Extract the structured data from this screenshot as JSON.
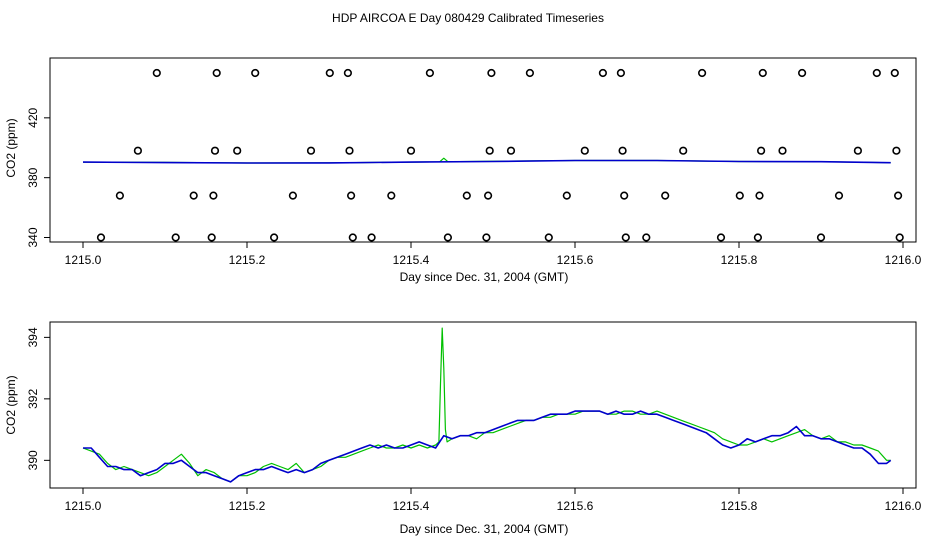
{
  "title": "HDP AIRCOA E  Day 080429  Calibrated Timeseries",
  "colors": {
    "green": "#00c000",
    "blue": "#0000cc",
    "marker": "#000000"
  },
  "chart_data": [
    {
      "type": "scatter",
      "xlabel": "Day since Dec. 31, 2004 (GMT)",
      "ylabel": "CO2 (ppm)",
      "xlim": [
        1215.0,
        1216.0
      ],
      "ylim": [
        337,
        460
      ],
      "x_ticks": [
        "1215.0",
        "1215.2",
        "1215.4",
        "1215.6",
        "1215.8",
        "1216.0"
      ],
      "y_ticks": [
        "340",
        "380",
        "420"
      ],
      "grid": false,
      "markers": [
        {
          "x": 1215.022,
          "y": 340
        },
        {
          "x": 1215.045,
          "y": 368
        },
        {
          "x": 1215.067,
          "y": 398
        },
        {
          "x": 1215.09,
          "y": 450
        },
        {
          "x": 1215.113,
          "y": 340
        },
        {
          "x": 1215.135,
          "y": 368
        },
        {
          "x": 1215.157,
          "y": 340
        },
        {
          "x": 1215.159,
          "y": 368
        },
        {
          "x": 1215.161,
          "y": 398
        },
        {
          "x": 1215.163,
          "y": 450
        },
        {
          "x": 1215.188,
          "y": 398
        },
        {
          "x": 1215.21,
          "y": 450
        },
        {
          "x": 1215.233,
          "y": 340
        },
        {
          "x": 1215.256,
          "y": 368
        },
        {
          "x": 1215.278,
          "y": 398
        },
        {
          "x": 1215.301,
          "y": 450
        },
        {
          "x": 1215.323,
          "y": 450
        },
        {
          "x": 1215.325,
          "y": 398
        },
        {
          "x": 1215.327,
          "y": 368
        },
        {
          "x": 1215.329,
          "y": 340
        },
        {
          "x": 1215.352,
          "y": 340
        },
        {
          "x": 1215.376,
          "y": 368
        },
        {
          "x": 1215.4,
          "y": 398
        },
        {
          "x": 1215.423,
          "y": 450
        },
        {
          "x": 1215.445,
          "y": 340
        },
        {
          "x": 1215.468,
          "y": 368
        },
        {
          "x": 1215.492,
          "y": 340
        },
        {
          "x": 1215.494,
          "y": 368
        },
        {
          "x": 1215.496,
          "y": 398
        },
        {
          "x": 1215.498,
          "y": 450
        },
        {
          "x": 1215.522,
          "y": 398
        },
        {
          "x": 1215.545,
          "y": 450
        },
        {
          "x": 1215.568,
          "y": 340
        },
        {
          "x": 1215.59,
          "y": 368
        },
        {
          "x": 1215.612,
          "y": 398
        },
        {
          "x": 1215.634,
          "y": 450
        },
        {
          "x": 1215.656,
          "y": 450
        },
        {
          "x": 1215.658,
          "y": 398
        },
        {
          "x": 1215.66,
          "y": 368
        },
        {
          "x": 1215.662,
          "y": 340
        },
        {
          "x": 1215.687,
          "y": 340
        },
        {
          "x": 1215.71,
          "y": 368
        },
        {
          "x": 1215.732,
          "y": 398
        },
        {
          "x": 1215.755,
          "y": 450
        },
        {
          "x": 1215.778,
          "y": 340
        },
        {
          "x": 1215.801,
          "y": 368
        },
        {
          "x": 1215.823,
          "y": 340
        },
        {
          "x": 1215.825,
          "y": 368
        },
        {
          "x": 1215.827,
          "y": 398
        },
        {
          "x": 1215.829,
          "y": 450
        },
        {
          "x": 1215.853,
          "y": 398
        },
        {
          "x": 1215.877,
          "y": 450
        },
        {
          "x": 1215.9,
          "y": 340
        },
        {
          "x": 1215.922,
          "y": 368
        },
        {
          "x": 1215.945,
          "y": 398
        },
        {
          "x": 1215.968,
          "y": 450
        },
        {
          "x": 1215.99,
          "y": 450
        },
        {
          "x": 1215.992,
          "y": 398
        },
        {
          "x": 1215.994,
          "y": 368
        },
        {
          "x": 1215.996,
          "y": 340
        }
      ],
      "series": [
        {
          "color_key": "green",
          "x": [
            1215.0,
            1215.1,
            1215.2,
            1215.3,
            1215.4,
            1215.435,
            1215.44,
            1215.445,
            1215.5,
            1215.6,
            1215.7,
            1215.8,
            1215.9,
            1215.985
          ],
          "y": [
            390.4,
            390.2,
            389.8,
            389.9,
            390.4,
            390.6,
            393.0,
            390.7,
            391.0,
            391.5,
            391.5,
            390.8,
            390.7,
            390.0
          ]
        },
        {
          "color_key": "blue",
          "x": [
            1215.0,
            1215.1,
            1215.2,
            1215.3,
            1215.4,
            1215.5,
            1215.6,
            1215.7,
            1215.8,
            1215.9,
            1215.985
          ],
          "y": [
            390.4,
            390.1,
            389.8,
            389.9,
            390.4,
            390.8,
            391.5,
            391.5,
            390.8,
            390.7,
            390.0
          ]
        }
      ]
    },
    {
      "type": "line",
      "xlabel": "Day since Dec. 31, 2004 (GMT)",
      "ylabel": "CO2 (ppm)",
      "xlim": [
        1215.0,
        1216.0
      ],
      "ylim": [
        389.1,
        394.5
      ],
      "x_ticks": [
        "1215.0",
        "1215.2",
        "1215.4",
        "1215.6",
        "1215.8",
        "1216.0"
      ],
      "y_ticks": [
        "390",
        "392",
        "394"
      ],
      "grid": false,
      "series": [
        {
          "color_key": "green",
          "x": [
            1215.0,
            1215.01,
            1215.02,
            1215.03,
            1215.04,
            1215.05,
            1215.06,
            1215.07,
            1215.08,
            1215.09,
            1215.1,
            1215.11,
            1215.12,
            1215.13,
            1215.14,
            1215.15,
            1215.16,
            1215.17,
            1215.18,
            1215.19,
            1215.2,
            1215.21,
            1215.22,
            1215.23,
            1215.24,
            1215.25,
            1215.26,
            1215.27,
            1215.28,
            1215.29,
            1215.3,
            1215.31,
            1215.32,
            1215.33,
            1215.34,
            1215.35,
            1215.36,
            1215.37,
            1215.38,
            1215.39,
            1215.4,
            1215.41,
            1215.42,
            1215.43,
            1215.434,
            1215.436,
            1215.438,
            1215.44,
            1215.442,
            1215.444,
            1215.45,
            1215.46,
            1215.47,
            1215.48,
            1215.49,
            1215.5,
            1215.51,
            1215.52,
            1215.53,
            1215.54,
            1215.55,
            1215.56,
            1215.57,
            1215.58,
            1215.59,
            1215.6,
            1215.61,
            1215.62,
            1215.63,
            1215.64,
            1215.65,
            1215.66,
            1215.67,
            1215.68,
            1215.69,
            1215.7,
            1215.71,
            1215.72,
            1215.73,
            1215.74,
            1215.75,
            1215.76,
            1215.77,
            1215.78,
            1215.79,
            1215.8,
            1215.81,
            1215.82,
            1215.83,
            1215.84,
            1215.85,
            1215.86,
            1215.87,
            1215.88,
            1215.89,
            1215.9,
            1215.91,
            1215.92,
            1215.93,
            1215.94,
            1215.95,
            1215.96,
            1215.97,
            1215.98,
            1215.985
          ],
          "y": [
            390.4,
            390.3,
            390.2,
            389.9,
            389.7,
            389.8,
            389.7,
            389.6,
            389.5,
            389.6,
            389.8,
            390.0,
            390.2,
            389.9,
            389.5,
            389.7,
            389.6,
            389.4,
            389.3,
            389.5,
            389.5,
            389.6,
            389.8,
            389.9,
            389.8,
            389.7,
            389.9,
            389.6,
            389.7,
            389.8,
            390.0,
            390.1,
            390.1,
            390.2,
            390.3,
            390.4,
            390.5,
            390.4,
            390.4,
            390.5,
            390.4,
            390.5,
            390.4,
            390.5,
            390.6,
            392.5,
            394.3,
            393.0,
            391.0,
            390.6,
            390.7,
            390.8,
            390.8,
            390.7,
            390.9,
            390.9,
            391.0,
            391.1,
            391.2,
            391.3,
            391.3,
            391.4,
            391.4,
            391.5,
            391.5,
            391.5,
            391.6,
            391.6,
            391.6,
            391.5,
            391.5,
            391.6,
            391.6,
            391.5,
            391.5,
            391.6,
            391.5,
            391.4,
            391.3,
            391.2,
            391.1,
            391.0,
            390.9,
            390.7,
            390.6,
            390.5,
            390.5,
            390.6,
            390.7,
            390.6,
            390.7,
            390.8,
            390.9,
            391.0,
            390.8,
            390.7,
            390.8,
            390.6,
            390.6,
            390.5,
            390.5,
            390.4,
            390.3,
            390.0,
            390.0
          ]
        },
        {
          "color_key": "blue",
          "x": [
            1215.0,
            1215.01,
            1215.02,
            1215.03,
            1215.04,
            1215.05,
            1215.06,
            1215.07,
            1215.08,
            1215.09,
            1215.1,
            1215.11,
            1215.12,
            1215.13,
            1215.14,
            1215.15,
            1215.16,
            1215.17,
            1215.18,
            1215.19,
            1215.2,
            1215.21,
            1215.22,
            1215.23,
            1215.24,
            1215.25,
            1215.26,
            1215.27,
            1215.28,
            1215.29,
            1215.3,
            1215.31,
            1215.32,
            1215.33,
            1215.34,
            1215.35,
            1215.36,
            1215.37,
            1215.38,
            1215.39,
            1215.4,
            1215.41,
            1215.42,
            1215.43,
            1215.44,
            1215.45,
            1215.46,
            1215.47,
            1215.48,
            1215.49,
            1215.5,
            1215.51,
            1215.52,
            1215.53,
            1215.54,
            1215.55,
            1215.56,
            1215.57,
            1215.58,
            1215.59,
            1215.6,
            1215.61,
            1215.62,
            1215.63,
            1215.64,
            1215.65,
            1215.66,
            1215.67,
            1215.68,
            1215.69,
            1215.7,
            1215.71,
            1215.72,
            1215.73,
            1215.74,
            1215.75,
            1215.76,
            1215.77,
            1215.78,
            1215.79,
            1215.8,
            1215.81,
            1215.82,
            1215.83,
            1215.84,
            1215.85,
            1215.86,
            1215.87,
            1215.88,
            1215.89,
            1215.9,
            1215.91,
            1215.92,
            1215.93,
            1215.94,
            1215.95,
            1215.96,
            1215.97,
            1215.98,
            1215.985
          ],
          "y": [
            390.4,
            390.4,
            390.1,
            389.8,
            389.8,
            389.7,
            389.7,
            389.5,
            389.6,
            389.7,
            389.9,
            389.9,
            390.0,
            389.8,
            389.6,
            389.6,
            389.5,
            389.4,
            389.3,
            389.5,
            389.6,
            389.7,
            389.7,
            389.8,
            389.7,
            389.6,
            389.7,
            389.6,
            389.7,
            389.9,
            390.0,
            390.1,
            390.2,
            390.3,
            390.4,
            390.5,
            390.4,
            390.5,
            390.4,
            390.4,
            390.5,
            390.6,
            390.5,
            390.4,
            390.8,
            390.7,
            390.8,
            390.8,
            390.9,
            390.9,
            391.0,
            391.1,
            391.2,
            391.3,
            391.3,
            391.3,
            391.4,
            391.5,
            391.5,
            391.5,
            391.6,
            391.6,
            391.6,
            391.6,
            391.5,
            391.6,
            391.5,
            391.5,
            391.6,
            391.5,
            391.5,
            391.4,
            391.3,
            391.2,
            391.1,
            391.0,
            390.9,
            390.7,
            390.5,
            390.4,
            390.5,
            390.7,
            390.6,
            390.7,
            390.8,
            390.8,
            390.9,
            391.1,
            390.8,
            390.8,
            390.7,
            390.7,
            390.6,
            390.5,
            390.4,
            390.4,
            390.2,
            389.9,
            389.9,
            390.0
          ]
        }
      ]
    }
  ]
}
